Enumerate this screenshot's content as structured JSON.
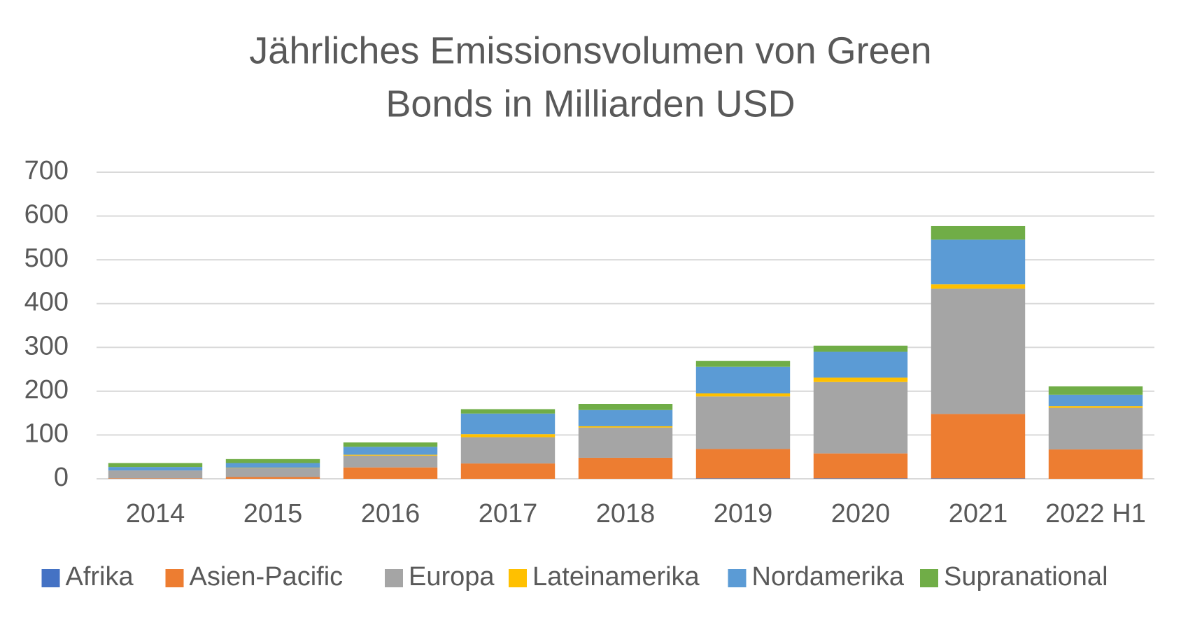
{
  "chart_data": {
    "type": "stacked-bar",
    "title": [
      "Jährliches Emissionsvolumen von Green",
      "Bonds in Milliarden USD"
    ],
    "categories": [
      "2014",
      "2015",
      "2016",
      "2017",
      "2018",
      "2019",
      "2020",
      "2021",
      "2022 H1"
    ],
    "series": [
      {
        "name": "Afrika",
        "color": "#4472c4",
        "values": [
          0,
          0,
          0,
          0,
          0,
          1,
          1,
          1,
          0
        ]
      },
      {
        "name": "Asien-Pacific",
        "color": "#ed7d31",
        "values": [
          1,
          4,
          26,
          35,
          48,
          67,
          57,
          147,
          67
        ]
      },
      {
        "name": "Europa",
        "color": "#a5a5a5",
        "values": [
          18,
          20,
          27,
          60,
          69,
          120,
          163,
          286,
          95
        ]
      },
      {
        "name": "Lateinamerika",
        "color": "#ffc000",
        "values": [
          0,
          1,
          2,
          7,
          3,
          7,
          10,
          10,
          4
        ]
      },
      {
        "name": "Nordamerika",
        "color": "#5b9bd5",
        "values": [
          8,
          11,
          18,
          47,
          37,
          61,
          59,
          102,
          26
        ]
      },
      {
        "name": "Supranational",
        "color": "#70ad47",
        "values": [
          9,
          9,
          10,
          10,
          14,
          13,
          14,
          31,
          19
        ]
      }
    ],
    "ylim": [
      0,
      700
    ],
    "yticks": [
      0,
      100,
      200,
      300,
      400,
      500,
      600,
      700
    ],
    "grid": true,
    "legend": "bottom"
  }
}
